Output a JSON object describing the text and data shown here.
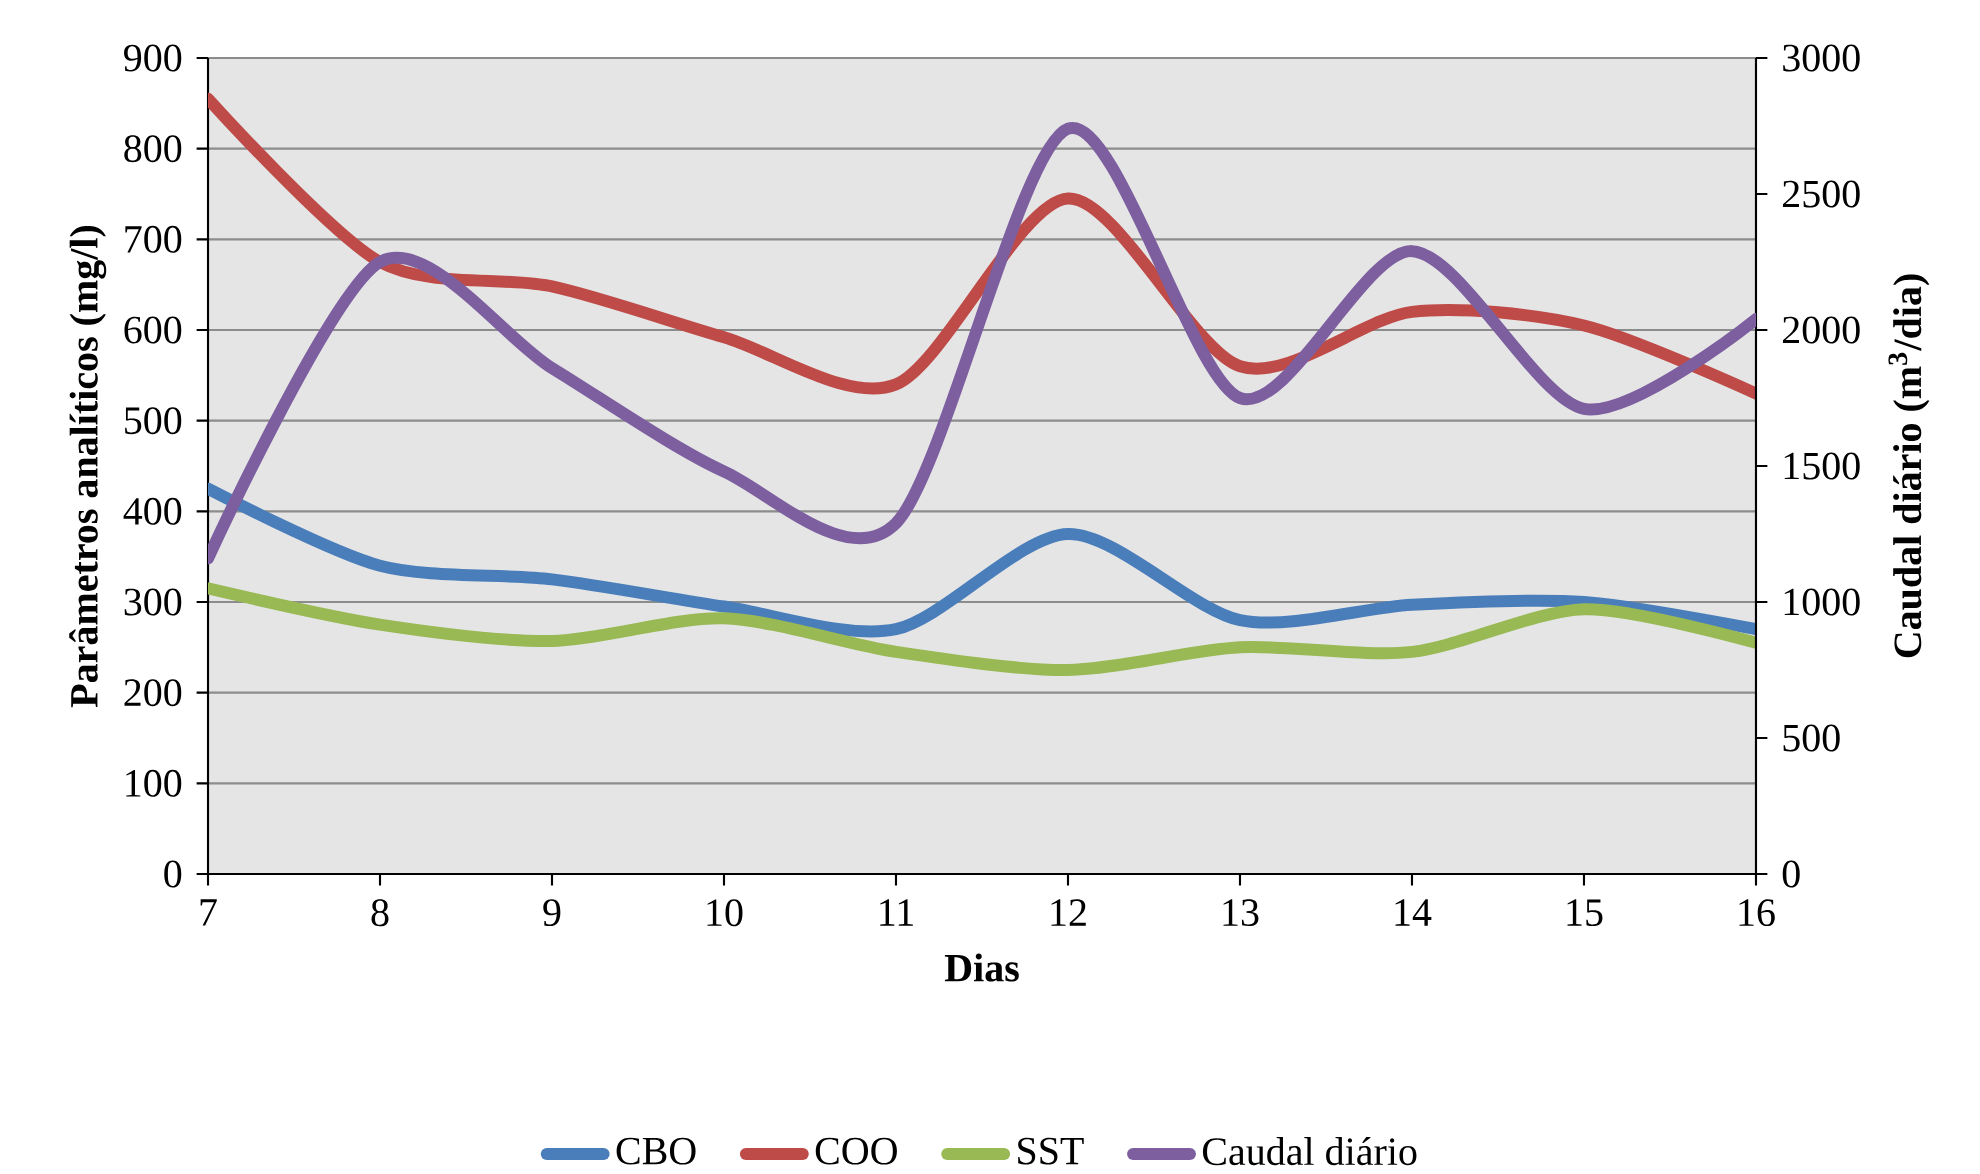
{
  "chart_data": {
    "type": "line",
    "xlabel": "Dias",
    "ylabel": "Parâmetros analíticos (mg/l)",
    "y2label": "Caudal diário (m$^{3}$/dia)",
    "x": [
      7,
      8,
      9,
      10,
      11,
      12,
      13,
      14,
      15,
      16
    ],
    "xlim": [
      7,
      16
    ],
    "xticks": [
      7,
      8,
      9,
      10,
      11,
      12,
      13,
      14,
      15,
      16
    ],
    "ylim": [
      0,
      900
    ],
    "yticks": [
      0,
      100,
      200,
      300,
      400,
      500,
      600,
      700,
      800,
      900
    ],
    "y2lim": [
      0,
      3000
    ],
    "y2ticks": [
      0,
      500,
      1000,
      1500,
      2000,
      2500,
      3000
    ],
    "grid": "y",
    "legend": "bottom",
    "marker": "none",
    "line_style": "solid",
    "series": [
      {
        "name": "CBO",
        "color": "#4a7ebb",
        "axis": "y",
        "values": [
          425,
          340,
          325,
          295,
          270,
          375,
          280,
          297,
          300,
          270
        ]
      },
      {
        "name": "COO",
        "color": "#be4b48",
        "axis": "y",
        "values": [
          855,
          675,
          648,
          592,
          540,
          745,
          560,
          620,
          605,
          530
        ]
      },
      {
        "name": "SST",
        "color": "#98b954",
        "axis": "y",
        "values": [
          315,
          275,
          257,
          282,
          245,
          225,
          250,
          245,
          292,
          255
        ]
      },
      {
        "name": "Caudal diário",
        "color": "#7d5fa0",
        "axis": "y2",
        "values": [
          1160,
          2250,
          1860,
          1480,
          1290,
          2740,
          1750,
          2290,
          1710,
          2040
        ]
      }
    ]
  }
}
